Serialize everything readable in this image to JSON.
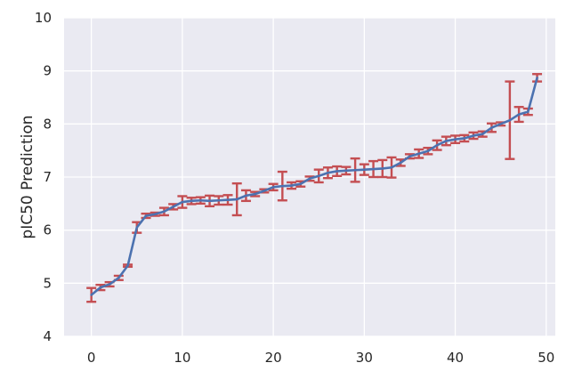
{
  "chart_data": {
    "type": "line",
    "title": "",
    "xlabel": "",
    "ylabel": "pIC50 Prediction",
    "xlim": [
      -3,
      51
    ],
    "ylim": [
      4,
      10
    ],
    "xticks": [
      0,
      10,
      20,
      30,
      40,
      50
    ],
    "yticks": [
      4,
      5,
      6,
      7,
      8,
      9,
      10
    ],
    "grid": true,
    "background": "#EAEAF2",
    "grid_color": "#FFFFFF",
    "line_color": "#4C72B0",
    "errorbar_color": "#C44E52",
    "series": [
      {
        "x": [
          0,
          1,
          2,
          3,
          4,
          5,
          6,
          7,
          8,
          9,
          10,
          11,
          12,
          13,
          14,
          15,
          16,
          17,
          18,
          19,
          20,
          21,
          22,
          23,
          24,
          25,
          26,
          27,
          28,
          29,
          30,
          31,
          32,
          33,
          34,
          35,
          36,
          37,
          38,
          39,
          40,
          41,
          42,
          43,
          44,
          45,
          46,
          47,
          48,
          49
        ],
        "y": [
          4.78,
          4.92,
          4.98,
          5.1,
          5.33,
          6.05,
          6.27,
          6.3,
          6.35,
          6.44,
          6.53,
          6.55,
          6.56,
          6.55,
          6.56,
          6.57,
          6.58,
          6.65,
          6.68,
          6.74,
          6.81,
          6.83,
          6.84,
          6.87,
          6.97,
          7.02,
          7.08,
          7.11,
          7.12,
          7.13,
          7.14,
          7.15,
          7.16,
          7.18,
          7.27,
          7.39,
          7.44,
          7.49,
          7.6,
          7.68,
          7.71,
          7.73,
          7.78,
          7.81,
          7.93,
          8.0,
          8.07,
          8.18,
          8.23,
          8.87
        ],
        "error": [
          0.13,
          0.05,
          0.04,
          0.04,
          0.02,
          0.1,
          0.04,
          0.03,
          0.07,
          0.05,
          0.11,
          0.06,
          0.06,
          0.1,
          0.08,
          0.09,
          0.3,
          0.1,
          0.04,
          0.03,
          0.06,
          0.27,
          0.06,
          0.05,
          0.04,
          0.12,
          0.1,
          0.09,
          0.07,
          0.22,
          0.1,
          0.15,
          0.16,
          0.19,
          0.06,
          0.04,
          0.08,
          0.06,
          0.09,
          0.08,
          0.07,
          0.06,
          0.06,
          0.05,
          0.08,
          0.03,
          0.73,
          0.14,
          0.06,
          0.07
        ]
      }
    ]
  }
}
